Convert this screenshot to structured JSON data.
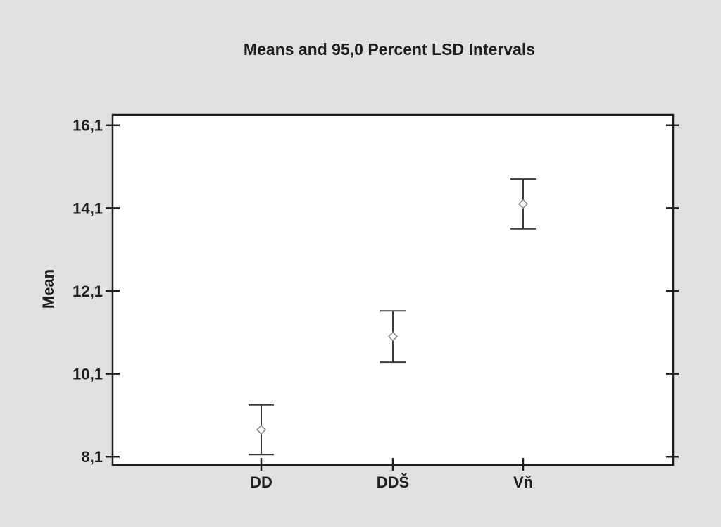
{
  "chart_data": {
    "type": "scatter",
    "title": "Means and 95,0 Percent LSD Intervals",
    "xlabel": "",
    "ylabel": "Mean",
    "categories": [
      "DD",
      "DDŠ",
      "Vň"
    ],
    "series": [
      {
        "values": [
          8.75,
          11.0,
          14.2
        ],
        "lower": [
          8.15,
          10.38,
          13.6
        ],
        "upper": [
          9.35,
          11.62,
          14.8
        ]
      }
    ],
    "yticks": [
      8.1,
      10.1,
      12.1,
      14.1,
      16.1
    ],
    "ytick_labels": [
      "8,1",
      "10,1",
      "12,1",
      "14,1",
      "16,1"
    ],
    "ylim": [
      7.9,
      16.35
    ],
    "grid": false,
    "legend": "none",
    "colors": {
      "background": "#e1e1e1",
      "plot_background": "#ffffff",
      "axis": "#1e1e1e",
      "marker": "#8a8a8a",
      "errorbar": "#3a3a3a",
      "text": "#1e1e1e"
    }
  }
}
